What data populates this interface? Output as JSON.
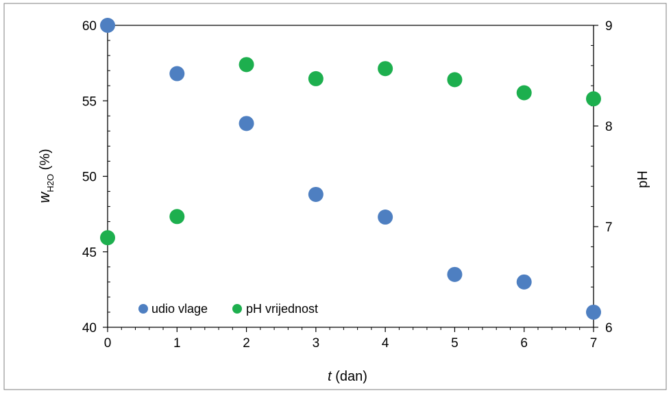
{
  "colors": {
    "moisture": "#4e7fc1",
    "ph": "#1daf4e",
    "axis": "#000000",
    "frame": "#7f7f7f"
  },
  "chart_data": {
    "type": "scatter",
    "xlabel_italic": "t",
    "xlabel_rest": " (dan)",
    "ylabel_italic": "w",
    "ylabel_subscript": "H2O",
    "ylabel_rest": " (%)",
    "y2label": "pH",
    "xlim": [
      0,
      7
    ],
    "ylim": [
      40,
      60
    ],
    "y2lim": [
      6,
      9
    ],
    "x_ticks": [
      0,
      1,
      2,
      3,
      4,
      5,
      6,
      7
    ],
    "y_ticks": [
      40,
      45,
      50,
      55,
      60
    ],
    "y2_ticks": [
      6,
      7,
      8,
      9
    ],
    "legend_position": "bottom-left",
    "grid": false,
    "series": [
      {
        "name": "udio vlage",
        "axis": "left",
        "color": "#4e7fc1",
        "x": [
          0,
          1,
          2,
          3,
          4,
          5,
          6,
          7
        ],
        "y": [
          60,
          56.8,
          53.5,
          48.8,
          47.3,
          43.5,
          43.0,
          41.0
        ]
      },
      {
        "name": "pH vrijednost",
        "axis": "right",
        "color": "#1daf4e",
        "x": [
          0,
          1,
          2,
          3,
          4,
          5,
          6,
          7
        ],
        "y": [
          6.89,
          7.1,
          8.61,
          8.47,
          8.57,
          8.46,
          8.33,
          8.27
        ]
      }
    ]
  }
}
